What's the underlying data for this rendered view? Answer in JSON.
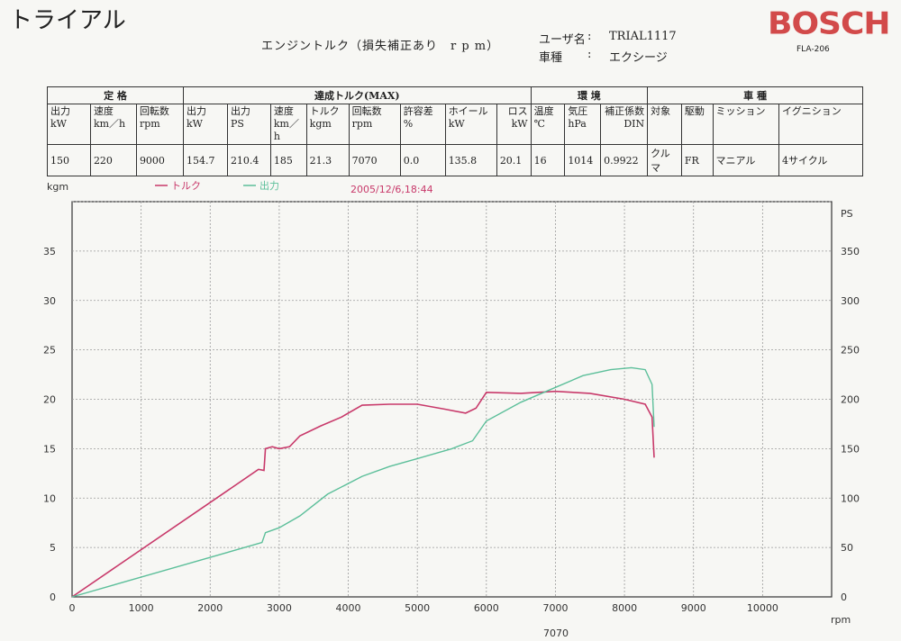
{
  "header": {
    "title": "トライアル",
    "sheet_title": "エンジントルク（損失補正あり　r p m）",
    "user_label": "ユーザ名",
    "user_colon": ":",
    "user_value": "TRIAL1117",
    "car_label": "車種",
    "car_colon": ":",
    "car_value": "エクシージ",
    "brand": "BOSCH",
    "model": "FLA-206"
  },
  "table": {
    "groups": [
      "定 格",
      "達成トルク(MAX)",
      "環 境",
      "車 種"
    ],
    "headers": [
      "出力\nkW",
      "速度\nkm／h",
      "回転数\nrpm",
      "出力\nkW",
      "出力\nPS",
      "速度\nkm／h",
      "トルク\nkgm",
      "回転数\nrpm",
      "許容差\n%",
      "ホイール\nkW",
      "ロス\nkW",
      "温度\n℃",
      "気圧\nhPa",
      "補正係数\nDIN",
      "対象",
      "駆動",
      "ミッション",
      "イグニション"
    ],
    "values": [
      "150",
      "220",
      "9000",
      "154.7",
      "210.4",
      "185",
      "21.3",
      "7070",
      "0.0",
      "135.8",
      "20.1",
      "16",
      "1014",
      "0.9922",
      "クルマ",
      "FR",
      "マニアル",
      "4サイクル"
    ]
  },
  "chart_data": {
    "type": "line",
    "left_axis_unit": "kgm",
    "right_axis_unit": "PS",
    "x_unit": "rpm",
    "x_marker_label": "7070",
    "timestamp": "2005/12/6,18:44",
    "xlim": [
      0,
      11000
    ],
    "x_ticks": [
      0,
      1000,
      2000,
      3000,
      4000,
      5000,
      6000,
      7000,
      8000,
      9000,
      10000
    ],
    "ylim_left": [
      0,
      40
    ],
    "y_ticks_left": [
      0,
      5,
      10,
      15,
      20,
      25,
      30,
      35
    ],
    "ylim_right": [
      0,
      400
    ],
    "y_ticks_right": [
      0,
      50,
      100,
      150,
      200,
      250,
      300,
      350
    ],
    "grid": true,
    "colors": {
      "torque": "#c8396a",
      "power": "#5cbf9a",
      "grid": "#9a9a9a",
      "frame": "#333333"
    },
    "series": [
      {
        "name": "トルク",
        "axis": "left",
        "color": "#c8396a",
        "points": [
          [
            0,
            0
          ],
          [
            2700,
            12.9
          ],
          [
            2780,
            12.8
          ],
          [
            2800,
            15.0
          ],
          [
            2900,
            15.2
          ],
          [
            3000,
            15.0
          ],
          [
            3150,
            15.2
          ],
          [
            3300,
            16.3
          ],
          [
            3600,
            17.3
          ],
          [
            3900,
            18.2
          ],
          [
            4200,
            19.4
          ],
          [
            4600,
            19.5
          ],
          [
            5000,
            19.5
          ],
          [
            5400,
            19.0
          ],
          [
            5700,
            18.6
          ],
          [
            5850,
            19.1
          ],
          [
            6000,
            20.7
          ],
          [
            6500,
            20.6
          ],
          [
            7000,
            20.8
          ],
          [
            7500,
            20.6
          ],
          [
            8000,
            20.0
          ],
          [
            8300,
            19.5
          ],
          [
            8400,
            18.2
          ],
          [
            8430,
            14.1
          ]
        ]
      },
      {
        "name": "出力",
        "axis": "right",
        "color": "#5cbf9a",
        "points": [
          [
            0,
            0
          ],
          [
            2750,
            55
          ],
          [
            2800,
            65
          ],
          [
            3000,
            70
          ],
          [
            3300,
            82
          ],
          [
            3700,
            104
          ],
          [
            4200,
            122
          ],
          [
            4600,
            132
          ],
          [
            5000,
            140
          ],
          [
            5500,
            150
          ],
          [
            5800,
            158
          ],
          [
            6000,
            178
          ],
          [
            6500,
            197
          ],
          [
            7000,
            212
          ],
          [
            7400,
            224
          ],
          [
            7800,
            230
          ],
          [
            8100,
            232
          ],
          [
            8300,
            230
          ],
          [
            8400,
            215
          ],
          [
            8430,
            172
          ]
        ]
      }
    ]
  }
}
